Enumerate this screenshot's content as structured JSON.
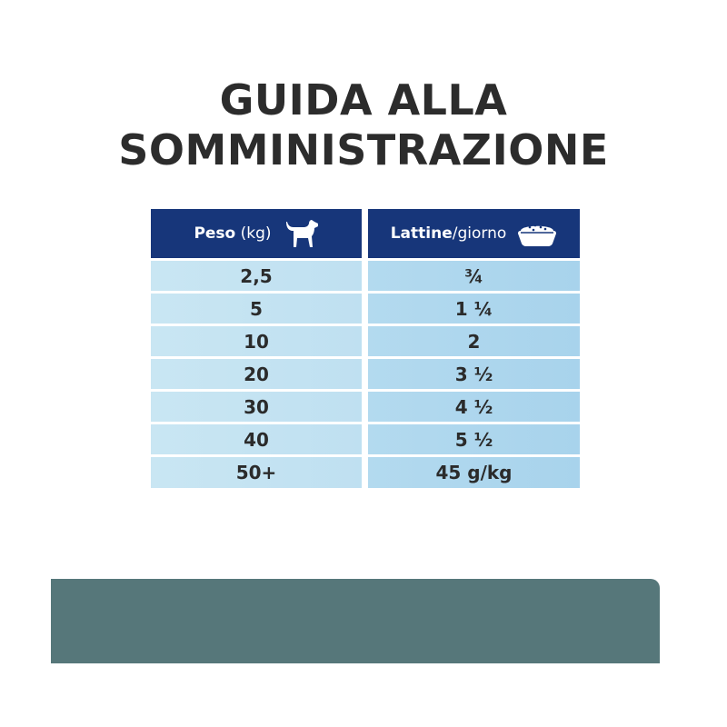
{
  "title": {
    "line1": "GUIDA ALLA",
    "line2": "SOMMINISTRAZIONE"
  },
  "table": {
    "header": {
      "weight_bold": "Peso",
      "weight_unit": " (kg)",
      "weight_icon": "dog-icon",
      "cans_bold": "Lattine",
      "cans_unit": "/giorno",
      "cans_icon": "food-bowl-icon"
    },
    "rows": [
      {
        "weight": "2,5",
        "cans": "¾"
      },
      {
        "weight": "5",
        "cans": "1 ¼"
      },
      {
        "weight": "10",
        "cans": "2"
      },
      {
        "weight": "20",
        "cans": "3 ½"
      },
      {
        "weight": "30",
        "cans": "4 ½"
      },
      {
        "weight": "40",
        "cans": "5 ½"
      },
      {
        "weight": "50+",
        "cans": "45 g/kg"
      }
    ]
  },
  "colors": {
    "header": "#17367a",
    "band": "#56777a"
  }
}
